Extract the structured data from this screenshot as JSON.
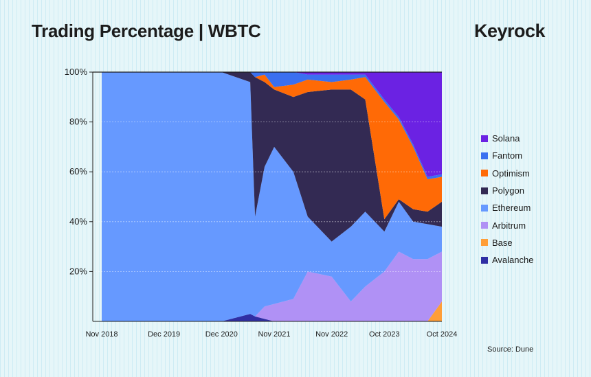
{
  "title": "Trading Percentage | WBTC",
  "brand": "Keyrock",
  "source": "Source: Dune",
  "colors": {
    "Solana": "#6b22e3",
    "Fantom": "#3a6ff0",
    "Optimism": "#ff6a06",
    "Polygon": "#332a53",
    "Ethereum": "#6699ff",
    "Arbitrum": "#b091f5",
    "Base": "#ff9e38",
    "Avalanche": "#302fa4"
  },
  "chart_data": {
    "type": "area",
    "stacked": true,
    "normalized": true,
    "x": [
      "Nov 2018",
      "Dec 2019",
      "Dec 2020",
      "Jun 2021",
      "Jul 2021",
      "Sep 2021",
      "Nov 2021",
      "Mar 2022",
      "Jun 2022",
      "Nov 2022",
      "Mar 2023",
      "Jun 2023",
      "Oct 2023",
      "Jan 2024",
      "Apr 2024",
      "Jul 2024",
      "Oct 2024"
    ],
    "x_tick_labels": [
      "Nov 2018",
      "Dec 2019",
      "Dec 2020",
      "Nov 2021",
      "Nov 2022",
      "Oct 2023",
      "Oct 2024"
    ],
    "y_tick_labels": [
      "20%",
      "40%",
      "60%",
      "80%",
      "100%"
    ],
    "ylim": [
      0,
      100
    ],
    "grid": "horizontal",
    "legend_position": "right",
    "series": [
      {
        "name": "Avalanche",
        "values": [
          0,
          0,
          0,
          3,
          2,
          1,
          0,
          0,
          0,
          0,
          0,
          0,
          0,
          0,
          0,
          0,
          0
        ]
      },
      {
        "name": "Base",
        "values": [
          0,
          0,
          0,
          0,
          0,
          0,
          0,
          0,
          0,
          0,
          0,
          0,
          0,
          0,
          0,
          0,
          8
        ]
      },
      {
        "name": "Arbitrum",
        "values": [
          0,
          0,
          0,
          0,
          0,
          5,
          7,
          9,
          20,
          18,
          8,
          14,
          20,
          28,
          25,
          25,
          20
        ]
      },
      {
        "name": "Ethereum",
        "values": [
          100,
          100,
          100,
          93,
          40,
          56,
          63,
          51,
          22,
          14,
          30,
          30,
          16,
          20,
          15,
          14,
          10
        ]
      },
      {
        "name": "Polygon",
        "values": [
          0,
          0,
          0,
          4,
          56,
          34,
          23,
          30,
          50,
          61,
          55,
          45,
          5,
          1,
          5,
          5,
          10
        ]
      },
      {
        "name": "Optimism",
        "values": [
          0,
          0,
          0,
          0,
          0,
          3,
          1,
          5,
          5,
          3,
          4,
          9,
          47,
          32,
          25,
          13,
          10
        ]
      },
      {
        "name": "Fantom",
        "values": [
          0,
          0,
          0,
          0,
          2,
          1,
          6,
          5,
          2,
          3,
          2,
          1,
          1,
          1,
          1,
          1,
          1
        ]
      },
      {
        "name": "Solana",
        "values": [
          0,
          0,
          0,
          0,
          0,
          0,
          0,
          0,
          1,
          1,
          1,
          1,
          11,
          18,
          29,
          42,
          41
        ]
      }
    ]
  }
}
